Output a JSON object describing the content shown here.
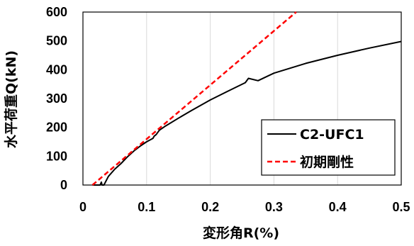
{
  "chart_data": {
    "type": "line",
    "xlabel": "変形角R(%)",
    "ylabel": "水平荷重Q(kN)",
    "xlim": [
      0,
      0.5
    ],
    "ylim": [
      0,
      600
    ],
    "x_ticks": [
      "0",
      "0.1",
      "0.2",
      "0.3",
      "0.4",
      "0.5"
    ],
    "y_ticks": [
      "0",
      "100",
      "200",
      "300",
      "400",
      "500",
      "600"
    ],
    "grid": "vertical",
    "legend_position": "lower-right",
    "series": [
      {
        "name": "C2-UFC1",
        "color": "#000000",
        "style": "solid",
        "points": [
          [
            0.015,
            0
          ],
          [
            0.027,
            0
          ],
          [
            0.029,
            10
          ],
          [
            0.03,
            0
          ],
          [
            0.033,
            0
          ],
          [
            0.04,
            30
          ],
          [
            0.05,
            55
          ],
          [
            0.06,
            75
          ],
          [
            0.07,
            98
          ],
          [
            0.08,
            118
          ],
          [
            0.09,
            135
          ],
          [
            0.1,
            150
          ],
          [
            0.11,
            162
          ],
          [
            0.112,
            170
          ],
          [
            0.115,
            175
          ],
          [
            0.12,
            190
          ],
          [
            0.13,
            205
          ],
          [
            0.15,
            232
          ],
          [
            0.17,
            258
          ],
          [
            0.2,
            295
          ],
          [
            0.23,
            328
          ],
          [
            0.255,
            355
          ],
          [
            0.26,
            370
          ],
          [
            0.275,
            362
          ],
          [
            0.3,
            388
          ],
          [
            0.35,
            422
          ],
          [
            0.4,
            450
          ],
          [
            0.45,
            475
          ],
          [
            0.5,
            498
          ]
        ]
      },
      {
        "name": "初期剛性",
        "color": "#ff0000",
        "style": "dashed",
        "points": [
          [
            0.015,
            0
          ],
          [
            0.335,
            600
          ]
        ]
      }
    ]
  }
}
